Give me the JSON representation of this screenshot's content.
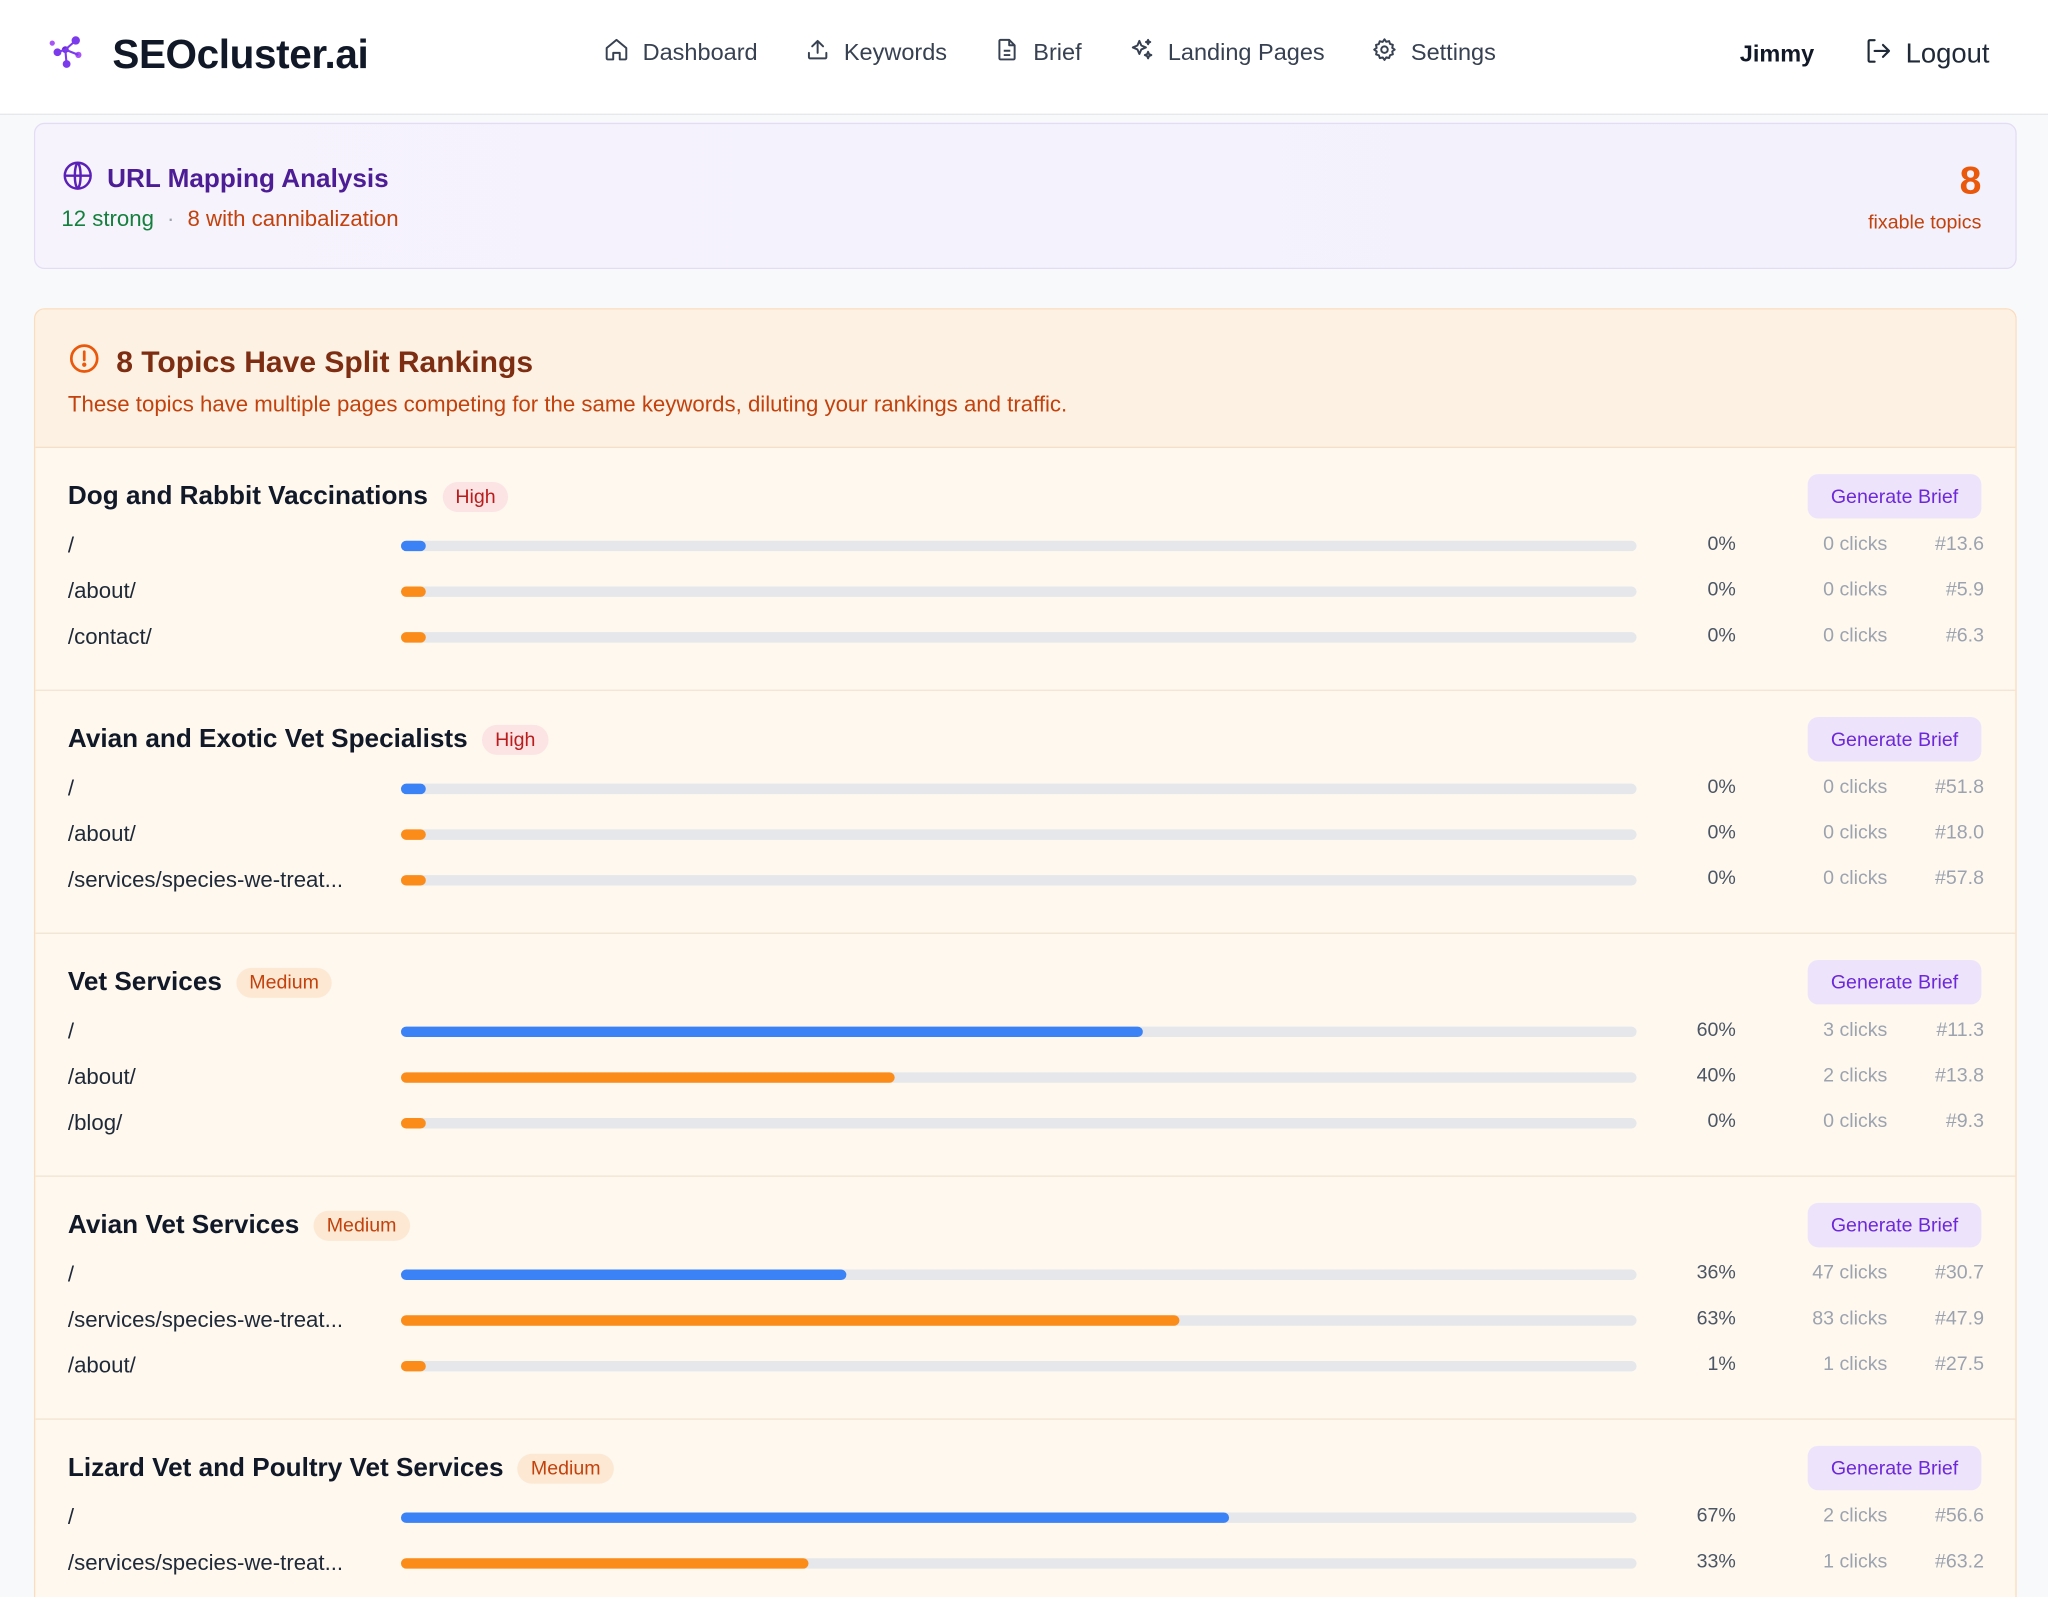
{
  "header": {
    "logo_icon": "cluster-logo-icon",
    "brand": "SEOcluster.ai",
    "nav": [
      {
        "icon": "home-icon",
        "label": "Dashboard"
      },
      {
        "icon": "upload-icon",
        "label": "Keywords"
      },
      {
        "icon": "document-icon",
        "label": "Brief"
      },
      {
        "icon": "sparkles-icon",
        "label": "Landing Pages"
      },
      {
        "icon": "gear-icon",
        "label": "Settings"
      }
    ],
    "user": "Jimmy",
    "logout_label": "Logout"
  },
  "url_mapping": {
    "icon": "globe-icon",
    "title": "URL Mapping Analysis",
    "strong": "12 strong",
    "separator": "·",
    "cannibalization": "8 with cannibalization",
    "fixable_count": "8",
    "fixable_label": "fixable topics"
  },
  "split": {
    "icon": "alert-circle-icon",
    "title": "8 Topics Have Split Rankings",
    "description": "These topics have multiple pages competing for the same keywords, diluting your rankings and traffic.",
    "button_label": "Generate Brief",
    "topics": [
      {
        "name": "Dog and Rabbit Vaccinations",
        "severity": "High",
        "urls": [
          {
            "path": "/",
            "pct": "0%",
            "share": 0,
            "clicks": "0 clicks",
            "rank": "#13.6"
          },
          {
            "path": "/about/",
            "pct": "0%",
            "share": 0,
            "clicks": "0 clicks",
            "rank": "#5.9"
          },
          {
            "path": "/contact/",
            "pct": "0%",
            "share": 0,
            "clicks": "0 clicks",
            "rank": "#6.3"
          }
        ]
      },
      {
        "name": "Avian and Exotic Vet Specialists",
        "severity": "High",
        "urls": [
          {
            "path": "/",
            "pct": "0%",
            "share": 0,
            "clicks": "0 clicks",
            "rank": "#51.8"
          },
          {
            "path": "/about/",
            "pct": "0%",
            "share": 0,
            "clicks": "0 clicks",
            "rank": "#18.0"
          },
          {
            "path": "/services/species-we-treat...",
            "pct": "0%",
            "share": 0,
            "clicks": "0 clicks",
            "rank": "#57.8"
          }
        ]
      },
      {
        "name": "Vet Services",
        "severity": "Medium",
        "urls": [
          {
            "path": "/",
            "pct": "60%",
            "share": 60,
            "clicks": "3 clicks",
            "rank": "#11.3"
          },
          {
            "path": "/about/",
            "pct": "40%",
            "share": 40,
            "clicks": "2 clicks",
            "rank": "#13.8"
          },
          {
            "path": "/blog/",
            "pct": "0%",
            "share": 0,
            "clicks": "0 clicks",
            "rank": "#9.3"
          }
        ]
      },
      {
        "name": "Avian Vet Services",
        "severity": "Medium",
        "urls": [
          {
            "path": "/",
            "pct": "36%",
            "share": 36,
            "clicks": "47 clicks",
            "rank": "#30.7"
          },
          {
            "path": "/services/species-we-treat...",
            "pct": "63%",
            "share": 63,
            "clicks": "83 clicks",
            "rank": "#47.9"
          },
          {
            "path": "/about/",
            "pct": "1%",
            "share": 1,
            "clicks": "1 clicks",
            "rank": "#27.5"
          }
        ]
      },
      {
        "name": "Lizard Vet and Poultry Vet Services",
        "severity": "Medium",
        "urls": [
          {
            "path": "/",
            "pct": "67%",
            "share": 67,
            "clicks": "2 clicks",
            "rank": "#56.6"
          },
          {
            "path": "/services/species-we-treat...",
            "pct": "33%",
            "share": 33,
            "clicks": "1 clicks",
            "rank": "#63.2"
          }
        ]
      }
    ]
  },
  "colors": {
    "primary_bar": "#3b82f6",
    "secondary_bar": "#fb8c1a",
    "brand_purple": "#7c3aed",
    "warning": "#ea580c"
  }
}
